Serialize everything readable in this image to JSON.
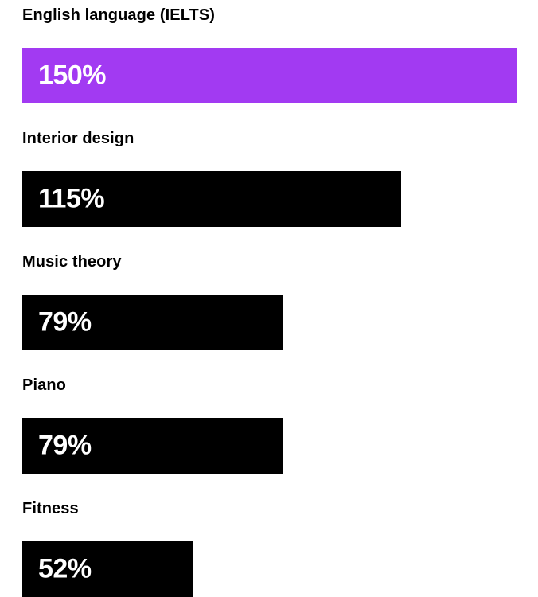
{
  "chart_data": {
    "type": "bar",
    "orientation": "horizontal",
    "categories": [
      "English language (IELTS)",
      "Interior design",
      "Music theory",
      "Piano",
      "Fitness"
    ],
    "values": [
      150,
      115,
      79,
      79,
      52
    ],
    "value_labels": [
      "150%",
      "115%",
      "79%",
      "79%",
      "52%"
    ],
    "unit": "%",
    "xlim": [
      0,
      150
    ],
    "grid": false,
    "legend": "none",
    "colors": [
      "#a23af2",
      "#000000",
      "#000000",
      "#000000",
      "#000000"
    ],
    "label_color": "#ffffff"
  }
}
